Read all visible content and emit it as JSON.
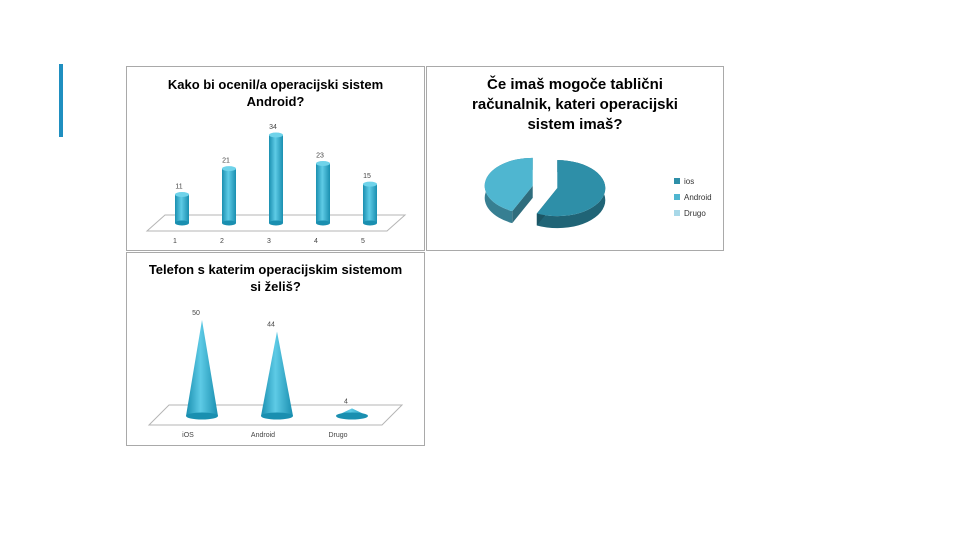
{
  "charts": [
    {
      "title": "Kako bi ocenil/a operacijski sistem Android?"
    },
    {
      "title": "Če imaš mogoče tablični računalnik, kateri operacijski sistem imaš?"
    },
    {
      "title": "Telefon s katerim operacijskim sistemom si želiš?"
    }
  ],
  "colors": {
    "accent": "#1f8fc0",
    "bar_light": "#5ecbe6",
    "bar_dark": "#1a8fb0",
    "pie_ios": "#2e8fa8",
    "pie_android": "#4fb6d0",
    "pie_drugo": "#a8d8e8"
  },
  "chart_data": [
    {
      "type": "bar",
      "style": "3d-cylinder",
      "title": "Kako bi ocenil/a operacijski sistem Android?",
      "categories": [
        "1",
        "2",
        "3",
        "4",
        "5"
      ],
      "values": [
        11,
        21,
        34,
        23,
        15
      ],
      "ylim": [
        0,
        34
      ],
      "grid": false
    },
    {
      "type": "pie",
      "style": "3d-exploded",
      "title": "Če imaš mogoče tablični računalnik, kateri operacijski sistem imaš?",
      "categories": [
        "ios",
        "Android",
        "Drugo"
      ],
      "values": [
        57,
        43,
        0
      ],
      "legend": "right"
    },
    {
      "type": "bar",
      "style": "3d-cone",
      "title": "Telefon s katerim operacijskim sistemom si želiš?",
      "categories": [
        "iOS",
        "Android",
        "Drugo"
      ],
      "values": [
        50,
        44,
        4
      ],
      "ylim": [
        0,
        50
      ],
      "grid": false
    }
  ]
}
